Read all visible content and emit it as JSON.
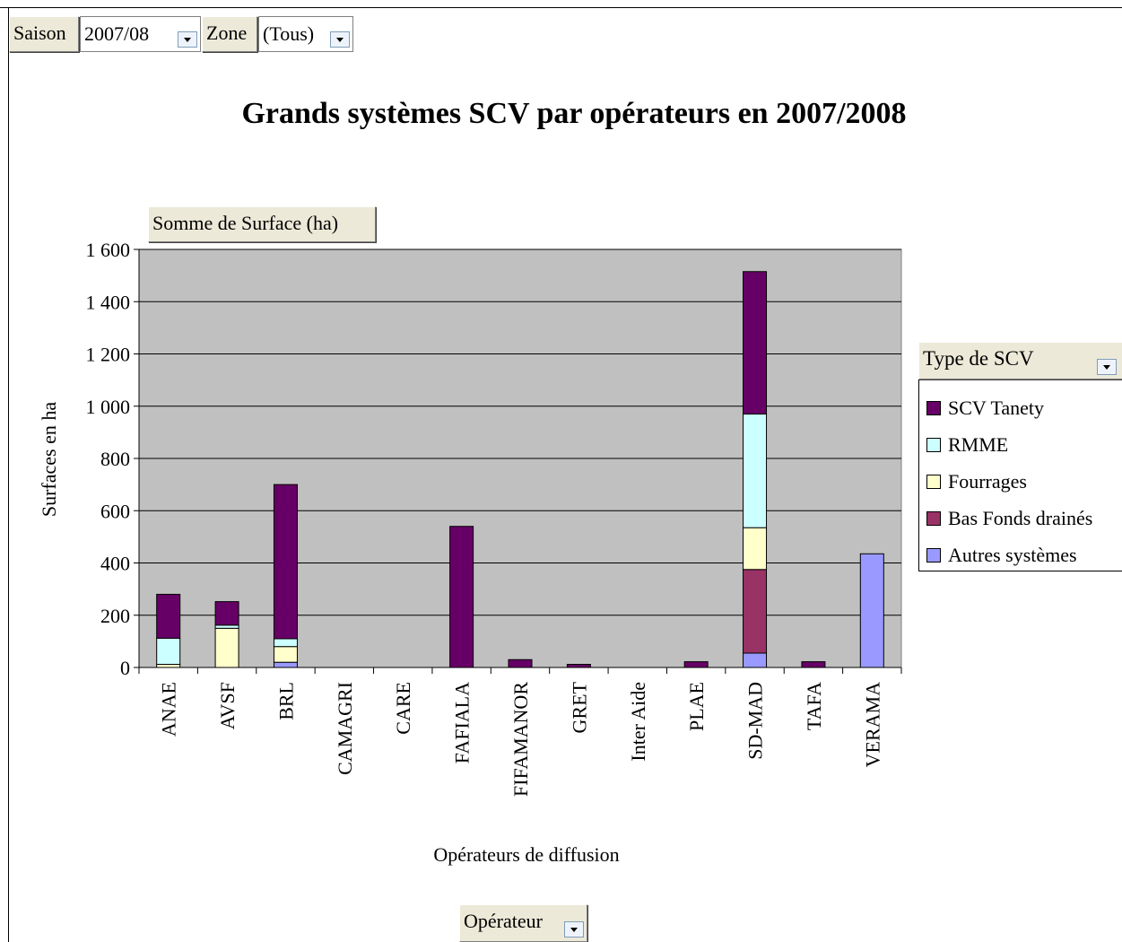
{
  "page_fields": {
    "saison_label": "Saison",
    "saison_value": "2007/08",
    "zone_label": "Zone",
    "zone_value": "(Tous)",
    "data_field": "Somme de Surface (ha)",
    "operateur_field": "Opérateur"
  },
  "legend": {
    "header": "Type de SCV"
  },
  "colors": {
    "plot_bg": "#c0c0c0",
    "SCV Tanety": "#660066",
    "RMME": "#ccffff",
    "Fourrages": "#ffffcc",
    "Bas Fonds drainés": "#993366",
    "Autres systèmes": "#9999ff"
  },
  "chart_data": {
    "type": "bar",
    "stacked": true,
    "title": "Grands systèmes SCV par opérateurs en 2007/2008",
    "xlabel": "Opérateurs de diffusion",
    "ylabel": "Surfaces en ha",
    "ylim": [
      0,
      1600
    ],
    "yticks": [
      "0",
      "200",
      "400",
      "600",
      "800",
      "1 000",
      "1 200",
      "1 400",
      "1 600"
    ],
    "ytick_values": [
      0,
      200,
      400,
      600,
      800,
      1000,
      1200,
      1400,
      1600
    ],
    "grid": true,
    "legend_position": "right",
    "categories": [
      "ANAE",
      "AVSF",
      "BRL",
      "CAMAGRI",
      "CARE",
      "FAFIALA",
      "FIFAMANOR",
      "GRET",
      "Inter Aide",
      "PLAE",
      "SD-MAD",
      "TAFA",
      "VERAMA"
    ],
    "series": [
      {
        "name": "Autres systèmes",
        "values": [
          0,
          0,
          20,
          0,
          0,
          0,
          0,
          0,
          0,
          0,
          55,
          0,
          435
        ]
      },
      {
        "name": "Bas Fonds drainés",
        "values": [
          0,
          0,
          0,
          0,
          0,
          0,
          0,
          0,
          0,
          0,
          320,
          0,
          0
        ]
      },
      {
        "name": "Fourrages",
        "values": [
          12,
          150,
          60,
          0,
          0,
          0,
          0,
          0,
          0,
          0,
          160,
          0,
          0
        ]
      },
      {
        "name": "RMME",
        "values": [
          100,
          12,
          30,
          0,
          0,
          0,
          0,
          0,
          0,
          0,
          435,
          0,
          0
        ]
      },
      {
        "name": "SCV Tanety",
        "values": [
          168,
          90,
          590,
          0,
          0,
          540,
          30,
          12,
          0,
          22,
          545,
          22,
          0
        ]
      }
    ],
    "legend_order": [
      "SCV Tanety",
      "RMME",
      "Fourrages",
      "Bas Fonds drainés",
      "Autres systèmes"
    ]
  }
}
